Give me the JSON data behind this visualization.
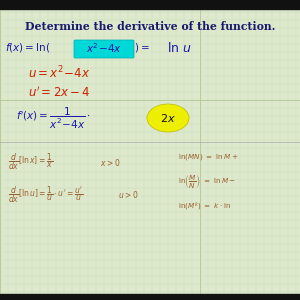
{
  "bg_color": "#dde8cc",
  "grid_major_color": "#b0c890",
  "grid_minor_color": "#c8dab0",
  "title": "Determine the derivative of the function.",
  "title_color": "#1a1a6e",
  "blue_color": "#1a1aaa",
  "red_color": "#cc2200",
  "dark_color": "#111111",
  "brown_color": "#9b6030",
  "cyan_color": "#00d8d8",
  "yellow_color": "#eeee00",
  "figsize": [
    3.0,
    3.0
  ],
  "dpi": 100
}
